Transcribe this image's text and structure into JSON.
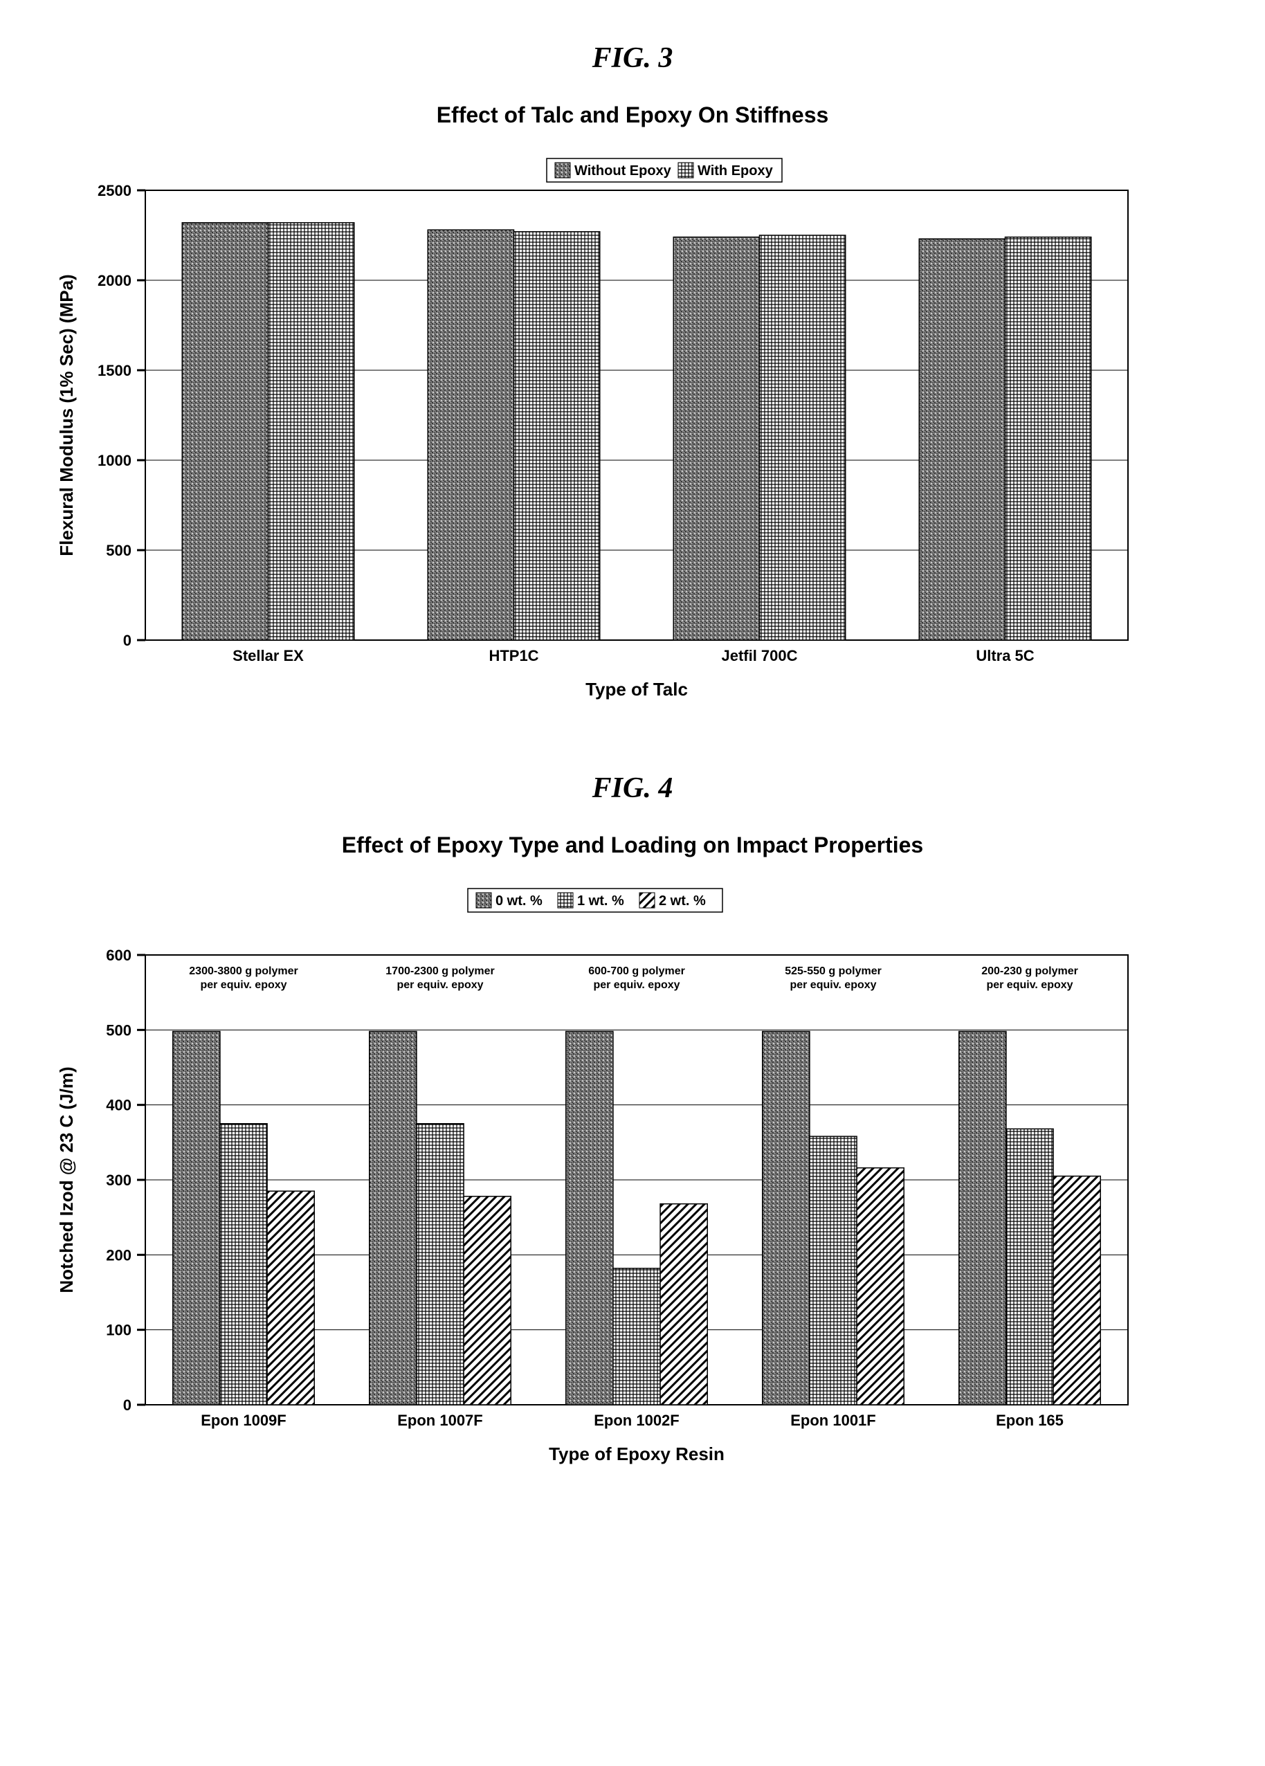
{
  "fig3": {
    "label": "FIG. 3",
    "title": "Effect of Talc and Epoxy On Stiffness",
    "type": "bar",
    "categories": [
      "Stellar EX",
      "HTP1C",
      "Jetfil 700C",
      "Ultra 5C"
    ],
    "series": [
      {
        "name": "Without Epoxy",
        "pattern": "noise",
        "values": [
          2320,
          2280,
          2240,
          2230
        ]
      },
      {
        "name": "With Epoxy",
        "pattern": "grid",
        "values": [
          2320,
          2270,
          2250,
          2240
        ]
      }
    ],
    "ylabel": "Flexural Modulus (1% Sec) (MPa)",
    "xlabel": "Type of Talc",
    "ylim": [
      0,
      2500
    ],
    "ytick_step": 500,
    "label_fontsize": 26,
    "tick_fontsize": 22,
    "bar_width": 0.35,
    "plot_bg": "#ffffff",
    "axis_color": "#000000",
    "grid_color": "#000000",
    "legend_box_stroke": "#000000"
  },
  "fig4": {
    "label": "FIG. 4",
    "title": "Effect of Epoxy Type and Loading on Impact Properties",
    "type": "bar",
    "categories": [
      "Epon 1009F",
      "Epon 1007F",
      "Epon 1002F",
      "Epon 1001F",
      "Epon 165"
    ],
    "annotations": [
      "2300-3800 g polymer per equiv. epoxy",
      "1700-2300 g polymer per equiv. epoxy",
      "600-700 g polymer per equiv. epoxy",
      "525-550 g polymer per equiv. epoxy",
      "200-230 g polymer per equiv. epoxy"
    ],
    "series": [
      {
        "name": "0 wt. %",
        "pattern": "noise",
        "values": [
          498,
          498,
          498,
          498,
          498
        ]
      },
      {
        "name": "1 wt. %",
        "pattern": "grid",
        "values": [
          375,
          375,
          182,
          358,
          368
        ]
      },
      {
        "name": "2 wt. %",
        "pattern": "diag",
        "values": [
          285,
          278,
          268,
          316,
          305
        ]
      }
    ],
    "ylabel": "Notched Izod @ 23 C (J/m)",
    "xlabel": "Type of Epoxy Resin",
    "ylim": [
      0,
      600
    ],
    "ytick_step": 100,
    "label_fontsize": 26,
    "tick_fontsize": 22,
    "annot_fontsize": 16,
    "bar_width": 0.24,
    "plot_bg": "#ffffff",
    "axis_color": "#000000",
    "grid_color": "#000000",
    "legend_box_stroke": "#000000"
  }
}
